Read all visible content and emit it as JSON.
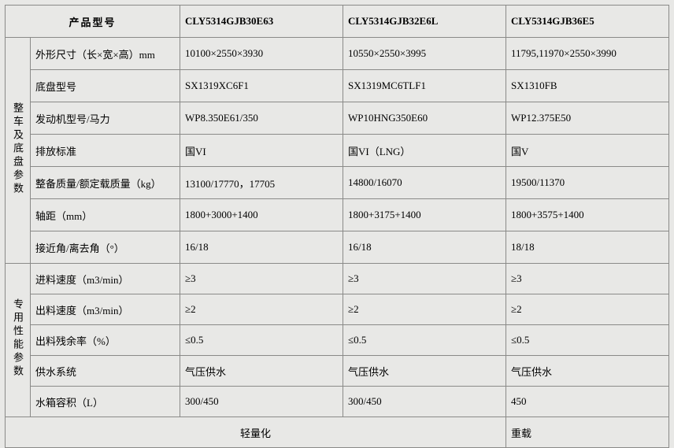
{
  "header": {
    "rowLabel": "产品型号",
    "models": [
      "CLY5314GJB30E63",
      "CLY5314GJB32E6L",
      "CLY5314GJB36E5"
    ]
  },
  "groups": [
    {
      "title": "整车及底盘参数",
      "rows": [
        {
          "label": "外形尺寸（长×宽×高）mm",
          "v": [
            "10100×2550×3930",
            "10550×2550×3995",
            "11795,11970×2550×3990"
          ]
        },
        {
          "label": "底盘型号",
          "v": [
            "SX1319XC6F1",
            "SX1319MC6TLF1",
            "SX1310FB"
          ]
        },
        {
          "label": "发动机型号/马力",
          "v": [
            "WP8.350E61/350",
            "WP10HNG350E60",
            "WP12.375E50"
          ]
        },
        {
          "label": "排放标准",
          "v": [
            "国VI",
            "国VI（LNG）",
            "国V"
          ]
        },
        {
          "label": "整备质量/额定载质量（kg）",
          "v": [
            "13100/17770，17705",
            "14800/16070",
            "19500/11370"
          ]
        },
        {
          "label": "轴距（mm）",
          "v": [
            "1800+3000+1400",
            "1800+3175+1400",
            "1800+3575+1400"
          ]
        },
        {
          "label": "接近角/离去角（°）",
          "v": [
            "16/18",
            "16/18",
            "18/18"
          ]
        }
      ]
    },
    {
      "title": "专用性能参数",
      "rows": [
        {
          "label": "进料速度（m3/min）",
          "v": [
            "≥3",
            "≥3",
            "≥3"
          ]
        },
        {
          "label": "出料速度（m3/min）",
          "v": [
            "≥2",
            "≥2",
            "≥2"
          ]
        },
        {
          "label": "出料残余率（%）",
          "v": [
            "≤0.5",
            "≤0.5",
            "≤0.5"
          ]
        },
        {
          "label": "供水系统",
          "v": [
            "气压供水",
            "气压供水",
            "气压供水"
          ]
        },
        {
          "label": "水箱容积（L）",
          "v": [
            "300/450",
            "300/450",
            "450"
          ]
        }
      ]
    }
  ],
  "footer": {
    "left": "轻量化",
    "right": "重载"
  }
}
